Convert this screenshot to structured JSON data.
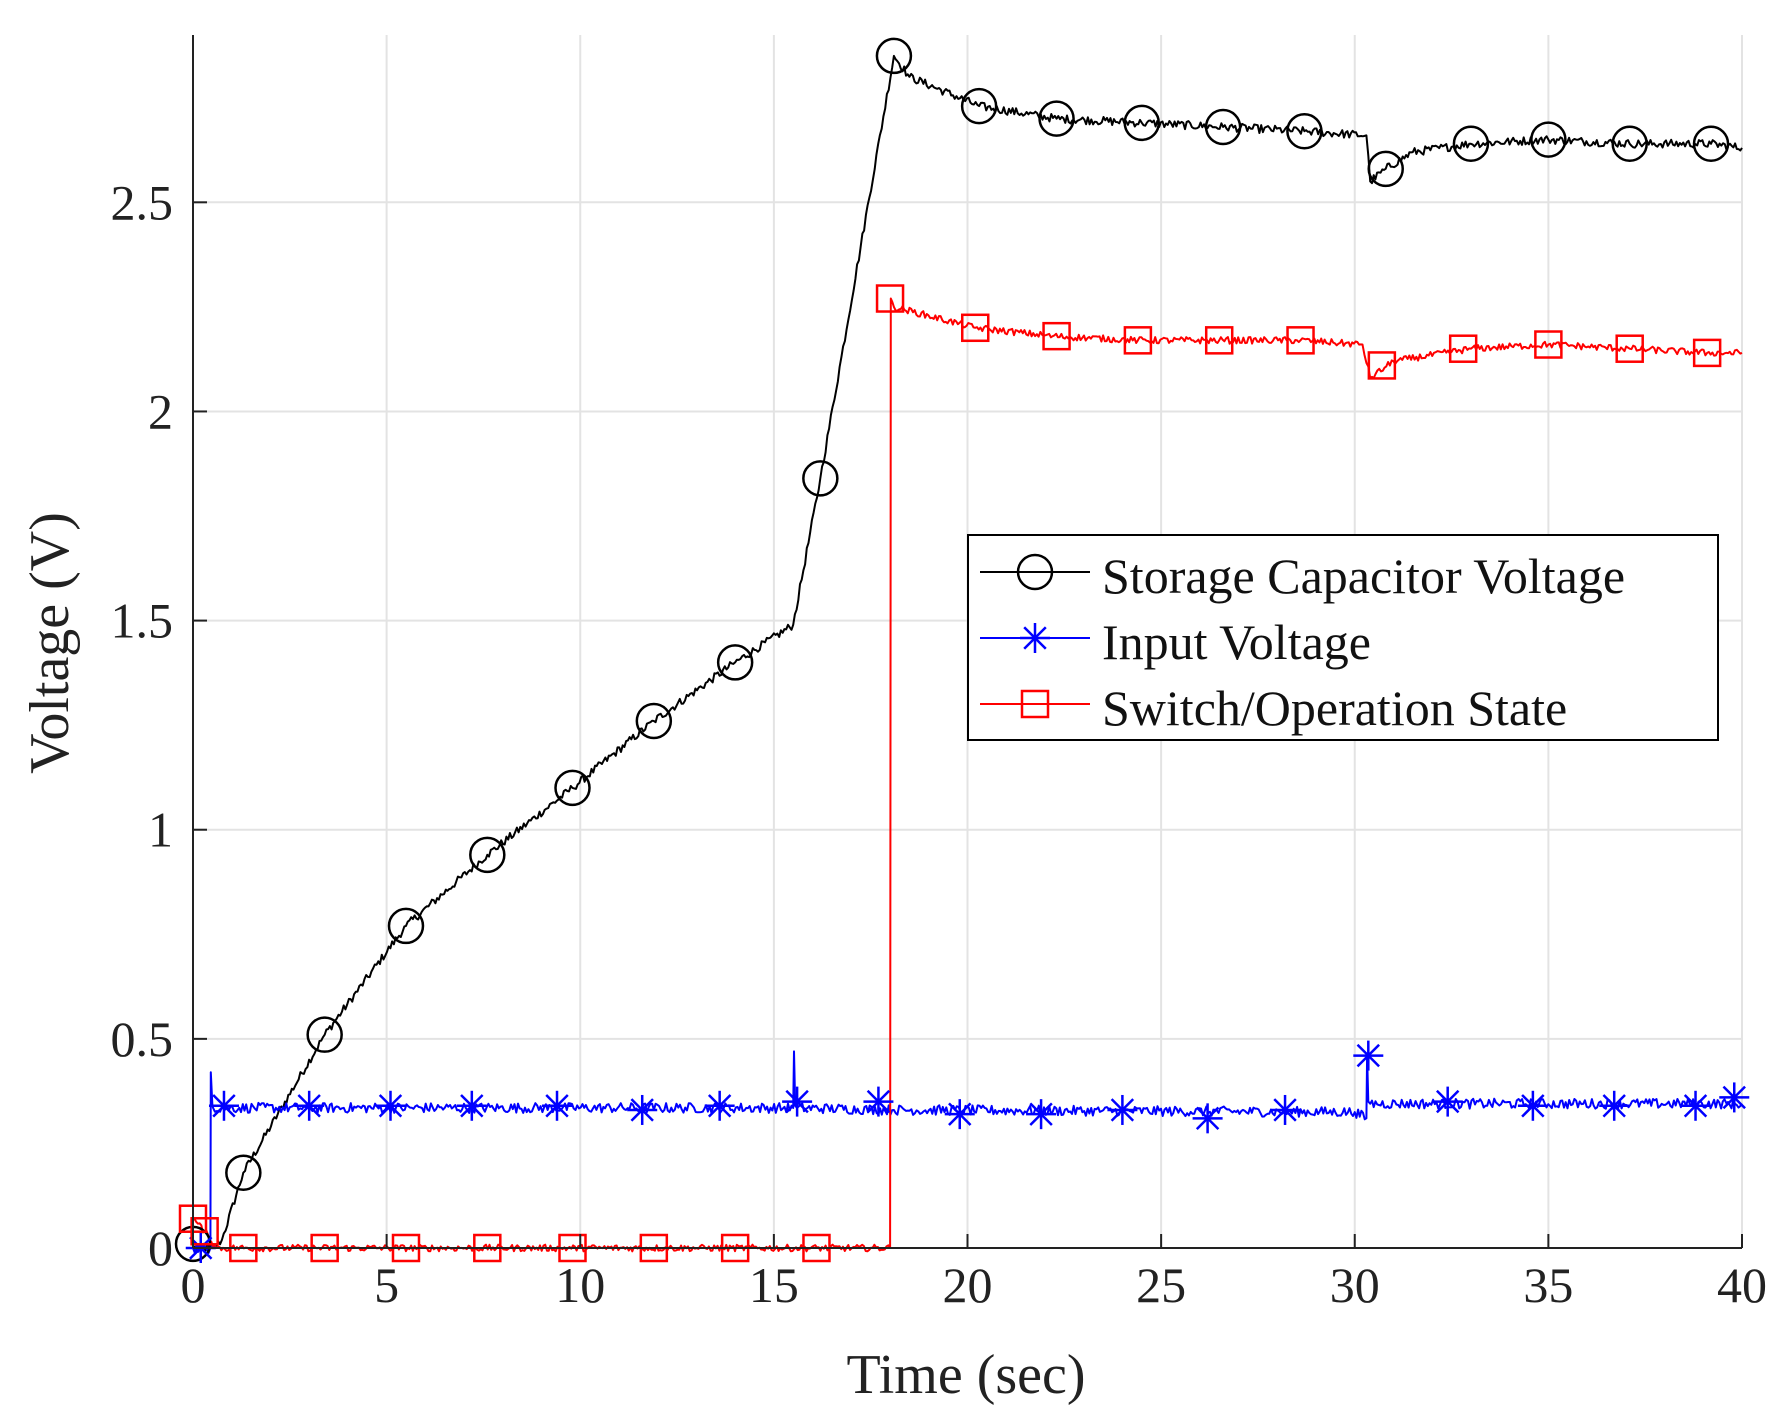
{
  "chart_data": {
    "type": "line",
    "title": "",
    "xlabel": "Time (sec)",
    "ylabel": "Voltage (V)",
    "xlim": [
      0,
      40
    ],
    "ylim": [
      0,
      2.9
    ],
    "grid": true,
    "legend_position": "center-right",
    "x_ticks": [
      0,
      5,
      10,
      15,
      20,
      25,
      30,
      35,
      40
    ],
    "x_tick_labels": [
      "0",
      "5",
      "10",
      "15",
      "20",
      "25",
      "30",
      "35",
      "40"
    ],
    "y_ticks": [
      0,
      0.5,
      1,
      1.5,
      2,
      2.5
    ],
    "y_tick_labels": [
      "0",
      "0.5",
      "1",
      "1.5",
      "2",
      "2.5"
    ],
    "series": [
      {
        "name": "Storage Capacitor Voltage",
        "color": "#000000",
        "marker": "circle",
        "noise": 0.01,
        "x": [
          0,
          0.55,
          0.75,
          1.3,
          3.4,
          5.5,
          7.6,
          9.8,
          11.9,
          14.0,
          15.5,
          16.2,
          18.1,
          18.5,
          20.3,
          22.3,
          24.5,
          26.6,
          28.7,
          30.3,
          30.4,
          30.8,
          31.5,
          33.0,
          35.0,
          37.1,
          39.2,
          40.0
        ],
        "y": [
          0.0,
          0.0,
          0.02,
          0.18,
          0.51,
          0.77,
          0.94,
          1.1,
          1.26,
          1.4,
          1.49,
          1.84,
          2.85,
          2.8,
          2.73,
          2.7,
          2.69,
          2.68,
          2.67,
          2.66,
          2.55,
          2.58,
          2.62,
          2.64,
          2.65,
          2.64,
          2.64,
          2.63
        ],
        "markers": [
          [
            0,
            0.01
          ],
          [
            1.3,
            0.18
          ],
          [
            3.4,
            0.51
          ],
          [
            5.5,
            0.77
          ],
          [
            7.6,
            0.94
          ],
          [
            9.8,
            1.1
          ],
          [
            11.9,
            1.26
          ],
          [
            14.0,
            1.4
          ],
          [
            16.2,
            1.84
          ],
          [
            18.1,
            2.85
          ],
          [
            20.3,
            2.73
          ],
          [
            22.3,
            2.7
          ],
          [
            24.5,
            2.69
          ],
          [
            26.6,
            2.68
          ],
          [
            28.7,
            2.67
          ],
          [
            30.8,
            2.58
          ],
          [
            33.0,
            2.64
          ],
          [
            35.0,
            2.65
          ],
          [
            37.1,
            2.64
          ],
          [
            39.2,
            2.64
          ]
        ]
      },
      {
        "name": "Input Voltage",
        "color": "#0000ff",
        "marker": "asterisk",
        "noise": 0.012,
        "x": [
          0,
          0.45,
          0.46,
          0.5,
          0.52,
          15.5,
          15.52,
          15.55,
          15.6,
          18.1,
          30.0,
          30.3,
          30.32,
          30.35,
          30.4,
          40.0
        ],
        "y": [
          0.0,
          0.0,
          0.42,
          0.34,
          0.335,
          0.335,
          0.47,
          0.34,
          0.335,
          0.33,
          0.325,
          0.31,
          0.46,
          0.35,
          0.345,
          0.345
        ],
        "markers": [
          [
            0.2,
            0.0
          ],
          [
            0.8,
            0.34
          ],
          [
            3.0,
            0.34
          ],
          [
            5.1,
            0.34
          ],
          [
            7.2,
            0.34
          ],
          [
            9.4,
            0.34
          ],
          [
            11.6,
            0.33
          ],
          [
            13.6,
            0.34
          ],
          [
            15.6,
            0.35
          ],
          [
            17.7,
            0.35
          ],
          [
            19.8,
            0.32
          ],
          [
            21.9,
            0.32
          ],
          [
            24.0,
            0.33
          ],
          [
            26.2,
            0.31
          ],
          [
            28.2,
            0.33
          ],
          [
            30.35,
            0.46
          ],
          [
            32.4,
            0.35
          ],
          [
            34.6,
            0.34
          ],
          [
            36.7,
            0.34
          ],
          [
            38.8,
            0.34
          ],
          [
            39.8,
            0.36
          ]
        ]
      },
      {
        "name": "Switch/Operation State",
        "color": "#ff0000",
        "marker": "square",
        "noise": 0.008,
        "x": [
          0,
          0.3,
          0.6,
          1.0,
          18.0,
          18.02,
          18.1,
          20.2,
          22.2,
          24.4,
          26.5,
          28.6,
          30.2,
          30.4,
          31.0,
          33.0,
          35.0,
          37.1,
          39.1,
          40.0
        ],
        "y": [
          0.07,
          0.04,
          0.0,
          0.0,
          0.0,
          2.27,
          2.25,
          2.2,
          2.18,
          2.17,
          2.17,
          2.17,
          2.16,
          2.08,
          2.12,
          2.15,
          2.16,
          2.15,
          2.14,
          2.14
        ],
        "markers": [
          [
            0,
            0.07
          ],
          [
            0.3,
            0.04
          ],
          [
            1.3,
            0.0
          ],
          [
            3.4,
            0.0
          ],
          [
            5.5,
            0.0
          ],
          [
            7.6,
            0.0
          ],
          [
            9.8,
            0.0
          ],
          [
            11.9,
            0.0
          ],
          [
            14.0,
            0.0
          ],
          [
            16.1,
            0.0
          ],
          [
            18.0,
            2.27
          ],
          [
            20.2,
            2.2
          ],
          [
            22.3,
            2.18
          ],
          [
            24.4,
            2.17
          ],
          [
            26.5,
            2.17
          ],
          [
            28.6,
            2.17
          ],
          [
            30.7,
            2.11
          ],
          [
            32.8,
            2.15
          ],
          [
            35.0,
            2.16
          ],
          [
            37.1,
            2.15
          ],
          [
            39.1,
            2.14
          ]
        ]
      }
    ]
  }
}
